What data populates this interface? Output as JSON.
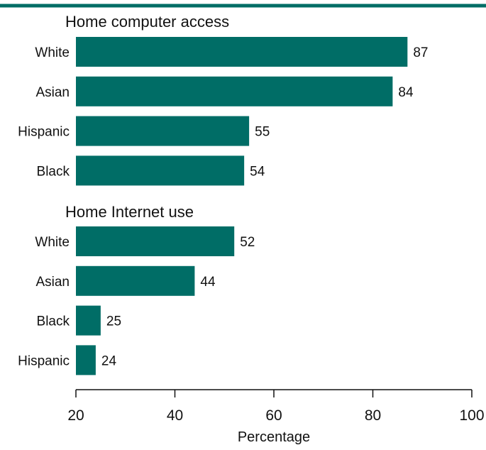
{
  "colors": {
    "bar": "#006d66",
    "top_rule": "#006d66",
    "axis": "#111111",
    "text": "#111111"
  },
  "chart_data": [
    {
      "type": "bar",
      "orientation": "horizontal",
      "title": "Home computer access",
      "categories": [
        "White",
        "Asian",
        "Hispanic",
        "Black"
      ],
      "values": [
        87,
        84,
        55,
        54
      ],
      "data_labels": [
        "87",
        "84",
        "55",
        "54"
      ],
      "xlabel": "Percentage",
      "xlim": [
        20,
        100
      ],
      "xticks": [
        20,
        40,
        60,
        80,
        100
      ],
      "grid": false,
      "legend": "none"
    },
    {
      "type": "bar",
      "orientation": "horizontal",
      "title": "Home Internet use",
      "categories": [
        "White",
        "Asian",
        "Black",
        "Hispanic"
      ],
      "values": [
        52,
        44,
        25,
        24
      ],
      "data_labels": [
        "52",
        "44",
        "25",
        "24"
      ],
      "xlabel": "Percentage",
      "xlim": [
        20,
        100
      ],
      "xticks": [
        20,
        40,
        60,
        80,
        100
      ],
      "grid": false,
      "legend": "none"
    }
  ]
}
